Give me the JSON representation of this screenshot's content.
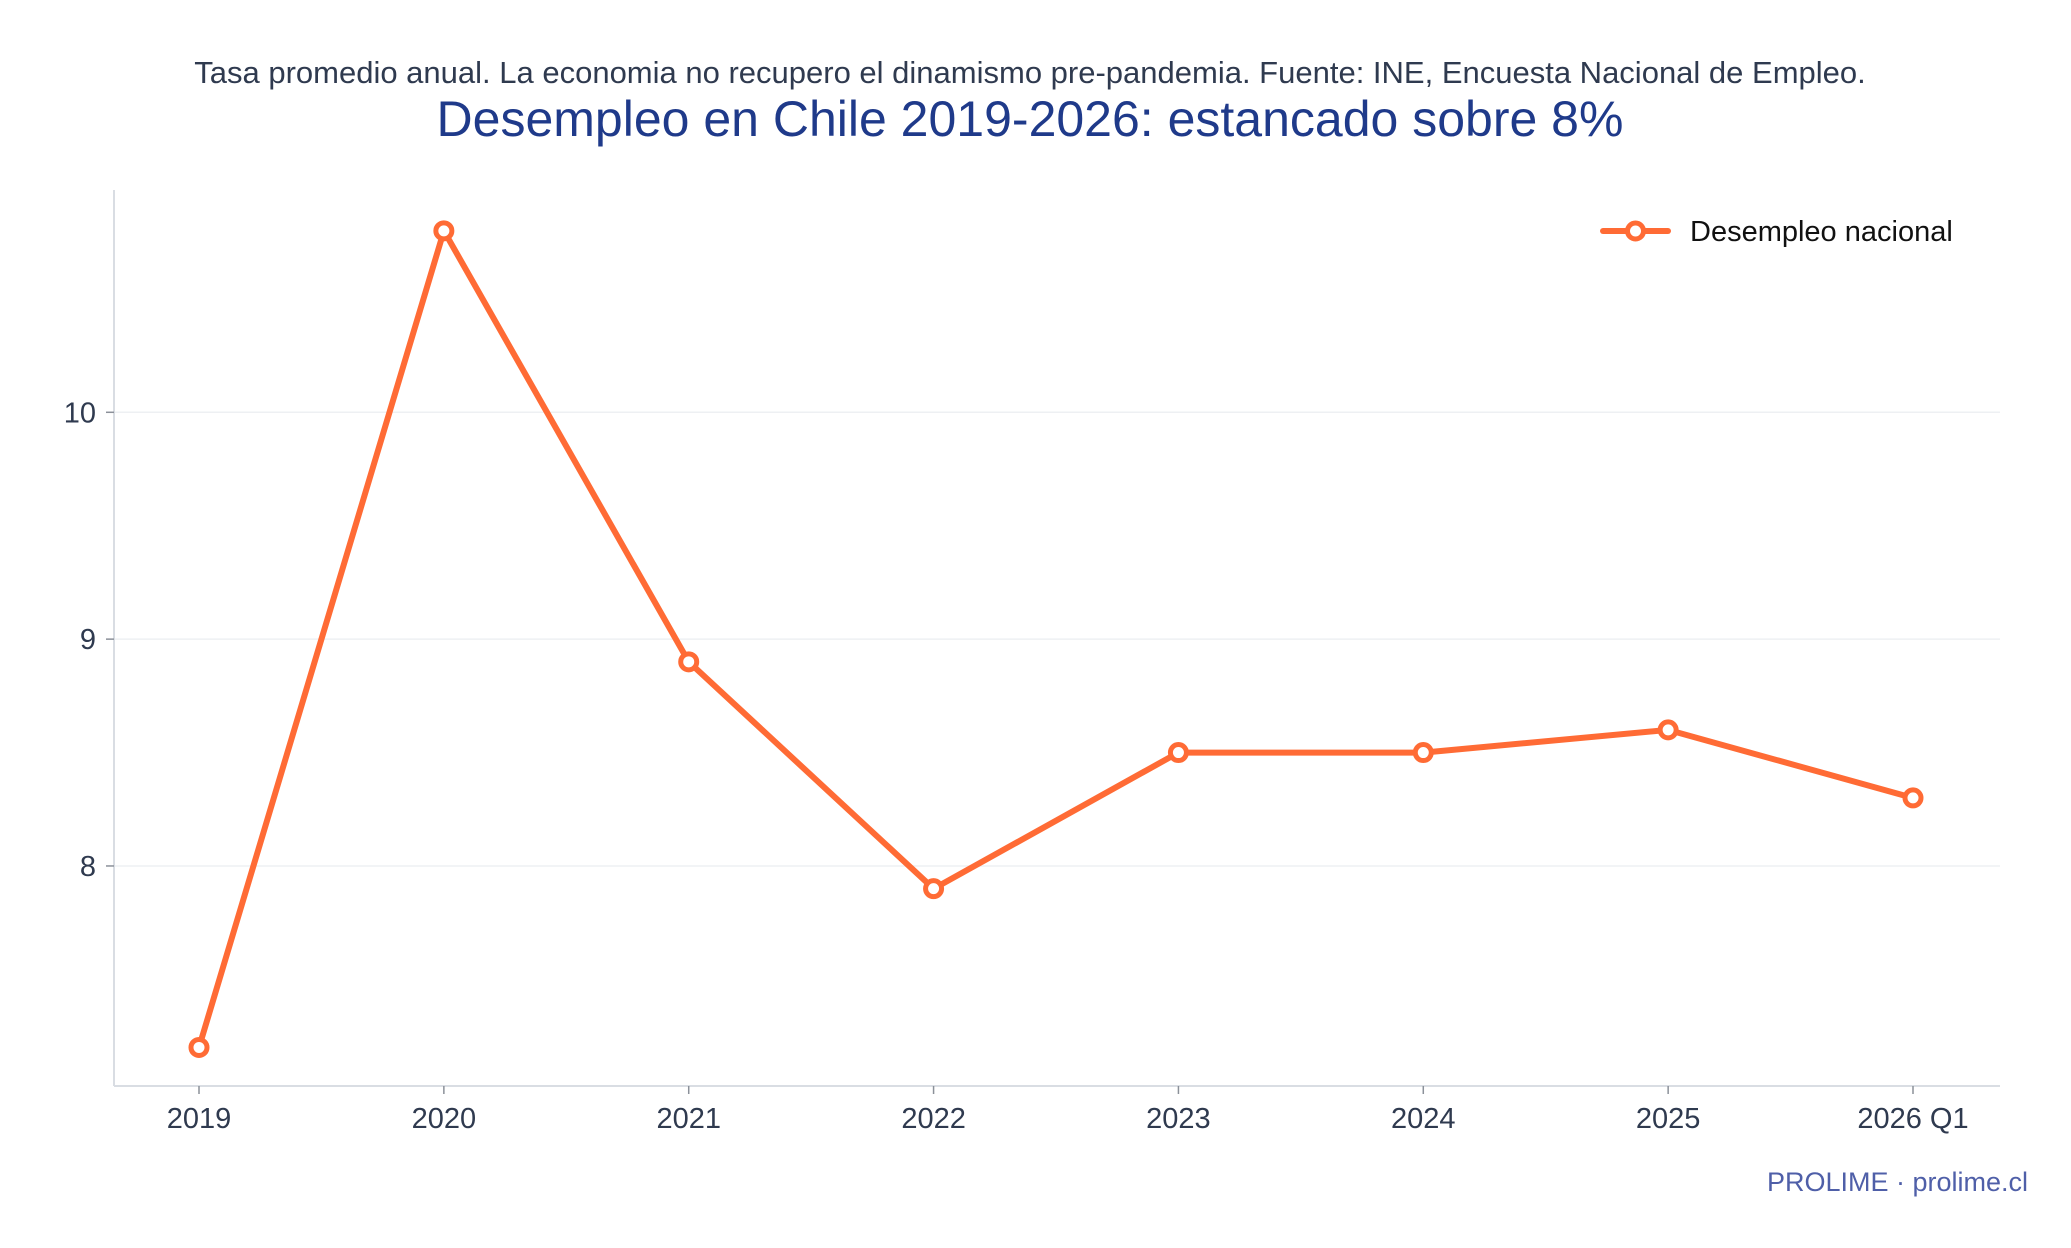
{
  "chart_data": {
    "type": "line",
    "title": "Desempleo en Chile 2019-2026: estancado sobre 8%",
    "subtitle": "Tasa promedio anual. La economia no recupero el dinamismo pre-pandemia. Fuente: INE, Encuesta Nacional de Empleo.",
    "categories": [
      "2019",
      "2020",
      "2021",
      "2022",
      "2023",
      "2024",
      "2025",
      "2026 Q1"
    ],
    "series": [
      {
        "name": "Desempleo nacional",
        "color": "#ff6b35",
        "values": [
          7.2,
          10.8,
          8.9,
          7.9,
          8.5,
          8.5,
          8.6,
          8.3
        ]
      }
    ],
    "y_ticks": [
      8,
      9,
      10
    ],
    "ylim": [
      7.03,
      10.98
    ],
    "grid": "horizontal",
    "legend_position": "top-right",
    "xlabel": "",
    "ylabel": ""
  },
  "footer": {
    "credit": "PROLIME · prolime.cl"
  }
}
